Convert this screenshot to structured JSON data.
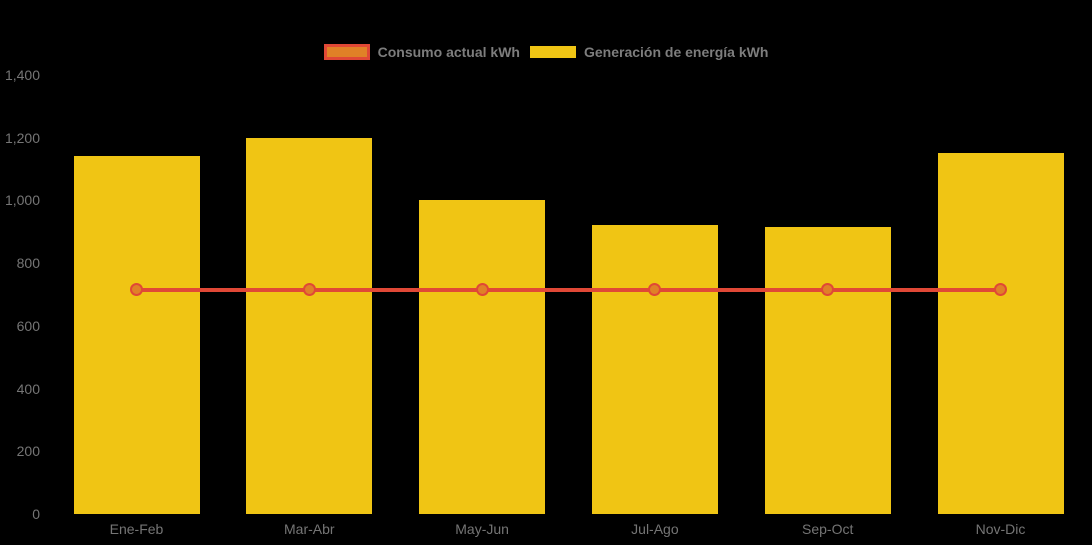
{
  "chart_data": {
    "type": "bar",
    "categories": [
      "Ene-Feb",
      "Mar-Abr",
      "May-Jun",
      "Jul-Ago",
      "Sep-Oct",
      "Nov-Dic"
    ],
    "series": [
      {
        "name": "Consumo actual kWh",
        "type": "line",
        "values": [
          715,
          715,
          715,
          715,
          715,
          715
        ],
        "color": "#e04836",
        "marker_fill": "#e08127"
      },
      {
        "name": "Generación de energía kWh",
        "type": "bar",
        "values": [
          1140,
          1200,
          1000,
          920,
          915,
          1150
        ],
        "color": "#f0c514"
      }
    ],
    "title": "",
    "xlabel": "",
    "ylabel": "",
    "ylim": [
      0,
      1400
    ],
    "ytick_interval": 200,
    "yticks": [
      "1,400",
      "1,200",
      "1,000",
      "800",
      "600",
      "400",
      "200",
      "0"
    ],
    "grid": false,
    "legend_position": "top-center",
    "background_color": "#000000",
    "axis_label_color": "#757575",
    "legend_label_color": "#7d7d7d"
  },
  "legend": {
    "items": [
      {
        "label": "Consumo actual kWh"
      },
      {
        "label": "Generación de energía kWh"
      }
    ]
  }
}
